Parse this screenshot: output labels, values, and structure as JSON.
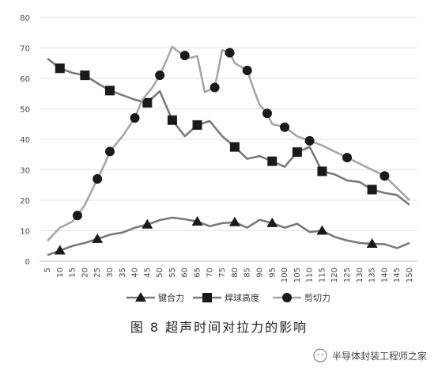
{
  "colors": {
    "series_line": "#7a7a7a",
    "shear_line": "#a6a6a6",
    "marker": "#1a1a1a",
    "axis": "#999999",
    "text": "#444444"
  },
  "caption": "图 8 超声时间对拉力的影响",
  "watermark": "半导体封装工程师之家",
  "chart_data": {
    "type": "line",
    "title": "",
    "xlabel": "",
    "ylabel": "",
    "x": [
      5,
      10,
      15,
      20,
      25,
      30,
      35,
      40,
      45,
      50,
      55,
      60,
      65,
      70,
      75,
      80,
      85,
      90,
      95,
      100,
      105,
      110,
      115,
      120,
      125,
      130,
      135,
      140,
      145,
      150
    ],
    "ylim": [
      0,
      80
    ],
    "yticks": [
      0,
      10,
      20,
      30,
      40,
      50,
      60,
      70,
      80
    ],
    "legend_position": "bottom",
    "series": [
      {
        "name": "键合力",
        "marker": "triangle",
        "values": [
          2,
          3.5,
          5,
          6,
          7.3,
          8.7,
          9.4,
          11,
          12,
          13.5,
          14.3,
          13.8,
          13,
          11.5,
          12.5,
          12.8,
          11,
          13.6,
          12.5,
          11,
          12.3,
          9.6,
          10,
          8,
          6.8,
          6,
          5.7,
          5.6,
          4.3,
          6
        ],
        "marker_x": [
          10,
          25,
          45,
          65,
          80,
          95,
          115,
          135
        ]
      },
      {
        "name": "焊球高度",
        "marker": "square",
        "values": [
          66.5,
          63.3,
          61.8,
          61,
          58.4,
          56,
          54.5,
          53,
          52,
          55.8,
          46.3,
          41,
          44.7,
          46,
          41,
          37.5,
          33.6,
          34.5,
          32.8,
          31,
          35.8,
          37.5,
          29.5,
          28.5,
          26.5,
          26,
          23.5,
          22.4,
          21.7,
          18.5
        ],
        "marker_x": [
          10,
          20,
          30,
          45,
          55,
          65,
          80,
          95,
          105,
          115,
          135
        ]
      },
      {
        "name": "剪切力",
        "marker": "circle",
        "values": [
          6.7,
          11,
          13,
          15,
          18.5,
          27,
          32,
          36,
          41,
          47,
          53,
          57,
          61,
          70.4,
          69,
          67.5,
          66.7,
          67.3,
          55.5,
          57,
          69.3,
          68.4,
          65,
          62.6,
          55.5,
          51.3,
          48.5,
          45,
          44,
          41,
          39.5,
          38,
          36,
          34,
          32,
          28,
          20
        ],
        "x": [
          5,
          10,
          15,
          17,
          20,
          25,
          28,
          30,
          35,
          40,
          43,
          47,
          50,
          55,
          57,
          60,
          62,
          65,
          68,
          72,
          75,
          78,
          80,
          85,
          88,
          90,
          93,
          95,
          100,
          105,
          110,
          115,
          120,
          125,
          130,
          140,
          150
        ],
        "marker_x": [
          17,
          25,
          30,
          40,
          50,
          60,
          72,
          78,
          85,
          93,
          100,
          110,
          125,
          140
        ]
      }
    ]
  }
}
